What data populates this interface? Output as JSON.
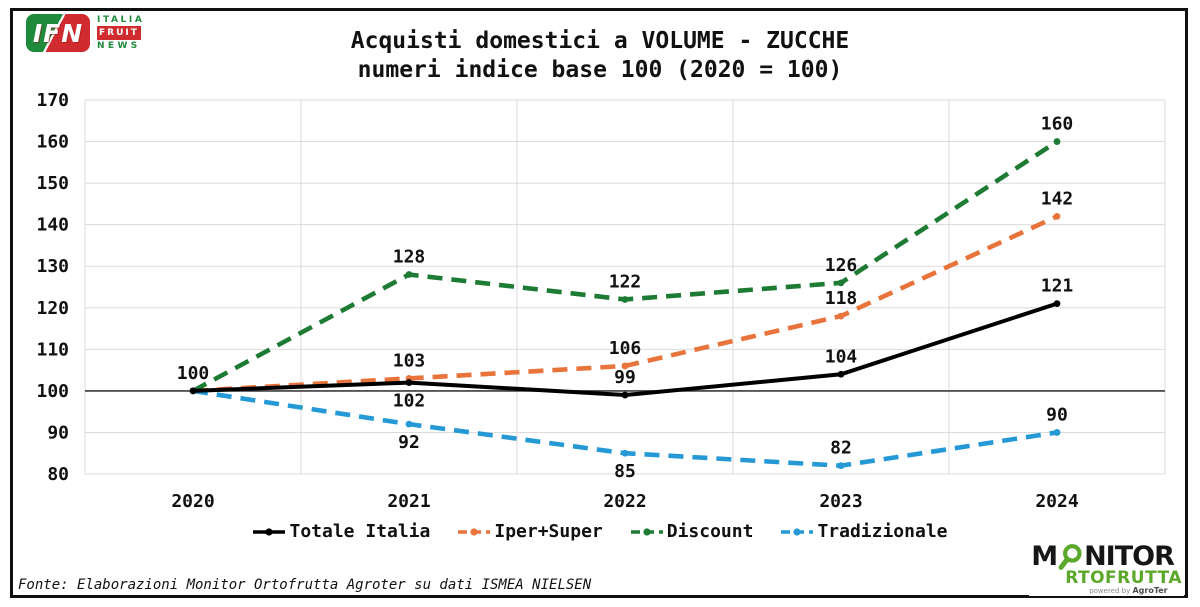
{
  "header": {
    "ifn_logo": {
      "acronym": "IFN",
      "line1": "ITALIA",
      "line2": "FRUIT",
      "line3": "NEWS"
    },
    "title_line1": "Acquisti domestici a VOLUME - ZUCCHE",
    "title_line2": "numeri indice base 100 (2020 = 100)"
  },
  "chart_data": {
    "type": "line",
    "title": "Acquisti domestici a VOLUME - ZUCCHE",
    "subtitle": "numeri indice base 100 (2020 = 100)",
    "categories": [
      "2020",
      "2021",
      "2022",
      "2023",
      "2024"
    ],
    "y_axis": {
      "min": 80,
      "max": 170,
      "step": 10
    },
    "grid": true,
    "legend_position": "bottom",
    "baseline": {
      "value": 100
    },
    "colors": {
      "grid": "#DBDBDB",
      "baseline": "#3C3C3C",
      "text": "#111111"
    },
    "series": [
      {
        "name": "Totale Italia",
        "color": "#000000",
        "style": "solid",
        "values": [
          100,
          102,
          99,
          104,
          121
        ],
        "label_positions": [
          "above",
          "below",
          "above",
          "above",
          "above"
        ]
      },
      {
        "name": "Iper+Super",
        "color": "#E8743B",
        "style": "dashed",
        "values": [
          100,
          103,
          106,
          118,
          142
        ],
        "label_positions": [
          "none",
          "above",
          "above",
          "above",
          "above"
        ]
      },
      {
        "name": "Discount",
        "color": "#1E7B34",
        "style": "dashed",
        "values": [
          100,
          128,
          122,
          126,
          160
        ],
        "label_positions": [
          "none",
          "above",
          "above",
          "above",
          "above"
        ]
      },
      {
        "name": "Tradizionale",
        "color": "#2499D6",
        "style": "dashed",
        "values": [
          100,
          92,
          85,
          82,
          90
        ],
        "label_positions": [
          "none",
          "below",
          "below",
          "above",
          "above"
        ]
      }
    ]
  },
  "footer": {
    "source": "Fonte: Elaborazioni Monitor Ortofrutta Agroter su dati ISMEA NIELSEN"
  },
  "branding": {
    "monitor_logo": {
      "line1_prefix": "M",
      "line1_suffix": "NITOR",
      "line2": "RTOFRUTTA",
      "powered_by": "powered by",
      "powered_brand": "AgroTer"
    }
  }
}
